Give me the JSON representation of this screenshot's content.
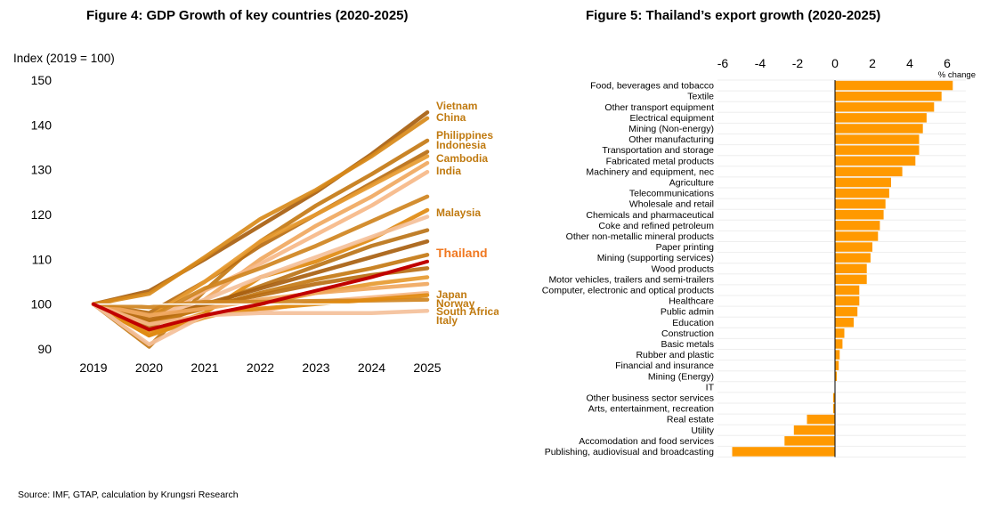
{
  "source": "Source: IMF, GTAP, calculation by Krungsri Research",
  "chart_data": [
    {
      "type": "line",
      "title": "Figure 4: GDP Growth of key countries (2020-2025)",
      "ylabel": "Index (2019 = 100)",
      "x": [
        "2019",
        "2020",
        "2021",
        "2022",
        "2023",
        "2024",
        "2025"
      ],
      "ylim": [
        90,
        150
      ],
      "yticks": [
        90,
        100,
        110,
        120,
        130,
        140,
        150
      ],
      "grid": false,
      "highlight_color": "#C00000",
      "label_color": "#C07A10",
      "highlight_label_color": "#F07820",
      "series": [
        {
          "name": "Vietnam",
          "values": [
            100,
            102.9,
            110,
            117.5,
            125,
            133.5,
            142.8
          ]
        },
        {
          "name": "China",
          "values": [
            100,
            102.3,
            110.5,
            119,
            125.5,
            133,
            141.5
          ]
        },
        {
          "name": "Philippines",
          "values": [
            100,
            90.5,
            103,
            114,
            122,
            129,
            136.5
          ]
        },
        {
          "name": "Indonesia",
          "values": [
            100,
            98,
            105,
            113,
            120,
            127,
            134
          ]
        },
        {
          "name": "Cambodia",
          "values": [
            100,
            97,
            105,
            114,
            120,
            126.5,
            133
          ]
        },
        {
          "name": "India",
          "values": [
            100,
            93,
            101,
            110,
            117.5,
            124,
            131.5
          ]
        },
        {
          "name": "",
          "values": [
            100,
            96,
            103,
            109,
            115.5,
            122,
            129.5
          ]
        },
        {
          "name": "",
          "values": [
            100,
            97,
            103.5,
            108,
            113,
            118.5,
            124
          ]
        },
        {
          "name": "Malaysia",
          "values": [
            100,
            94,
            98,
            106,
            109.5,
            114.5,
            121
          ]
        },
        {
          "name": "",
          "values": [
            100,
            96.5,
            101,
            106,
            110.5,
            115,
            119.5
          ]
        },
        {
          "name": "",
          "values": [
            100,
            95,
            99.5,
            104,
            108.5,
            113,
            116.5
          ]
        },
        {
          "name": "",
          "values": [
            100,
            96,
            100,
            103.5,
            107,
            110.5,
            114
          ]
        },
        {
          "name": "Thailand",
          "values": [
            100,
            94.3,
            97.5,
            100,
            103,
            106,
            109.5
          ]
        },
        {
          "name": "",
          "values": [
            100,
            96,
            99,
            102.5,
            105.5,
            108,
            111
          ]
        },
        {
          "name": "",
          "values": [
            100,
            96.5,
            99.5,
            102,
            104.5,
            106.5,
            108
          ]
        },
        {
          "name": "",
          "values": [
            100,
            93,
            97,
            100,
            102.5,
            104.5,
            106
          ]
        },
        {
          "name": "",
          "values": [
            100,
            97.5,
            99,
            101,
            102.5,
            103.5,
            104.5
          ]
        },
        {
          "name": "Japan",
          "values": [
            100,
            95.5,
            97.5,
            98.5,
            100.5,
            101.5,
            102.5
          ]
        },
        {
          "name": "Norway",
          "values": [
            100,
            99.3,
            100.5,
            100.5,
            100.7,
            100.8,
            101
          ]
        },
        {
          "name": "South Africa",
          "values": [
            100,
            93,
            97.5,
            99,
            100,
            101,
            102
          ]
        },
        {
          "name": "Italy",
          "values": [
            100,
            91,
            97.5,
            98,
            98,
            98,
            98.5
          ]
        }
      ]
    },
    {
      "type": "bar",
      "orientation": "horizontal",
      "title": "Figure 5: Thailand’s export growth (2020-2025)",
      "unit_label": "% change",
      "xlim": [
        -6,
        6.8
      ],
      "xticks": [
        -6,
        -4,
        -2,
        0,
        2,
        4,
        6
      ],
      "grid": true,
      "bar_color": "#FF9900",
      "categories": [
        "Food, beverages and tobacco",
        "Textile",
        "Other transport equipment",
        "Electrical equipment",
        "Mining (Non-energy)",
        "Other manufacturing",
        "Transportation and storage",
        "Fabricated metal products",
        "Machinery and equipment, nec",
        "Agriculture",
        "Telecommunications",
        "Wholesale and retail",
        "Chemicals and pharmaceutical",
        "Coke and refined petroleum",
        "Other non-metallic mineral products",
        "Paper printing",
        "Mining (supporting services)",
        "Wood products",
        "Motor vehicles, trailers and semi-trailers",
        "Computer, electronic and optical products",
        "Healthcare",
        "Public admin",
        "Education",
        "Construction",
        "Basic metals",
        "Rubber and plastic",
        "Financial and insurance",
        "Mining (Energy)",
        "IT",
        "Other business sector services",
        "Arts, entertainment, recreation",
        "Real estate",
        "Utility",
        "Accomodation and food services",
        "Publishing, audiovisual and broadcasting"
      ],
      "values": [
        6.3,
        5.7,
        5.3,
        4.9,
        4.7,
        4.5,
        4.5,
        4.3,
        3.6,
        3.0,
        2.9,
        2.7,
        2.6,
        2.4,
        2.3,
        2.0,
        1.9,
        1.7,
        1.7,
        1.3,
        1.3,
        1.2,
        1.0,
        0.5,
        0.4,
        0.25,
        0.2,
        0.1,
        0,
        -0.1,
        -0.1,
        -1.5,
        -2.2,
        -2.7,
        -5.5
      ]
    }
  ]
}
